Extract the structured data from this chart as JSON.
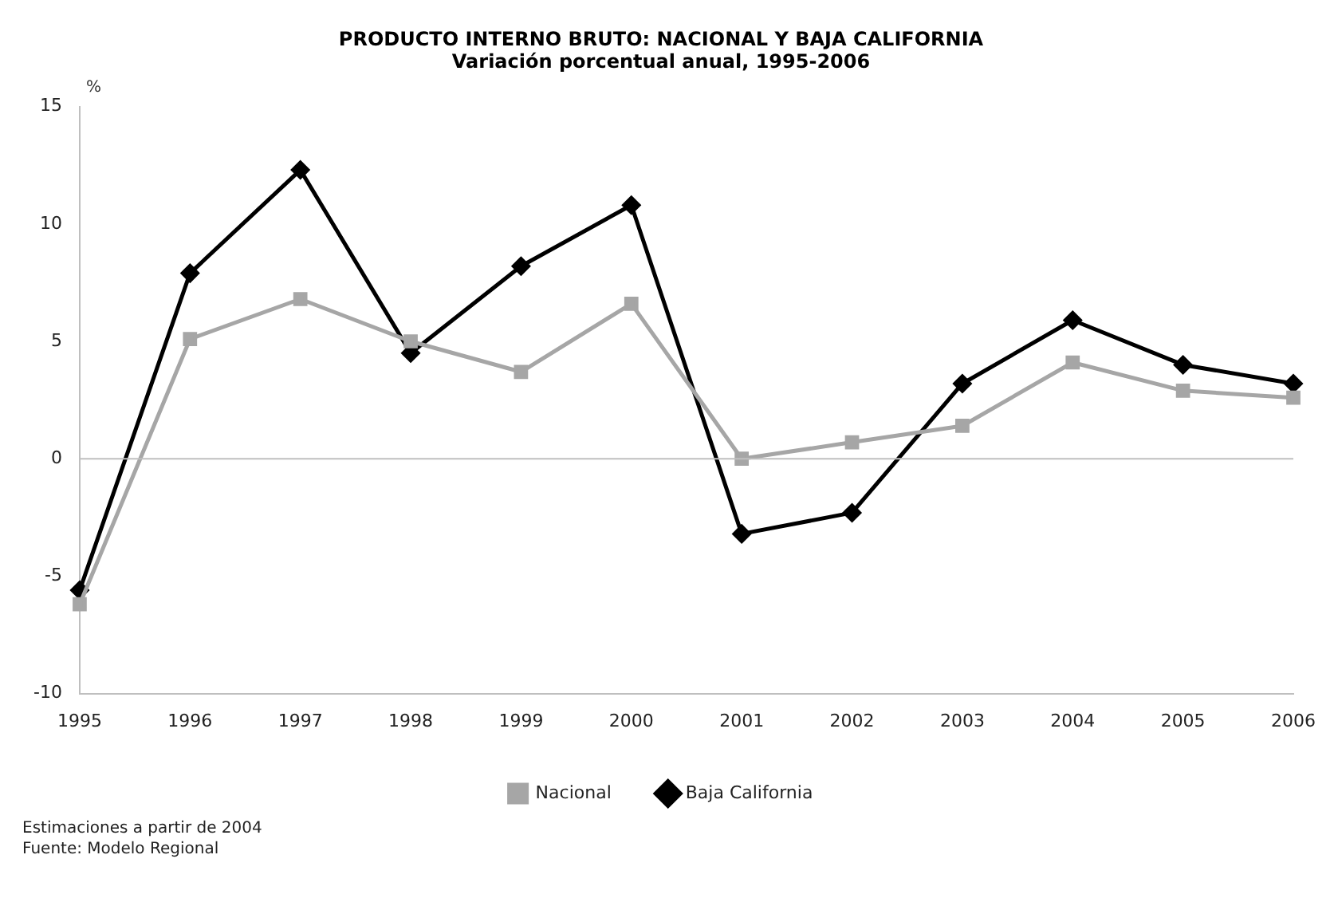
{
  "chart_data": {
    "type": "line",
    "title": "PRODUCTO INTERNO BRUTO: NACIONAL Y BAJA CALIFORNIA",
    "subtitle": "Variación porcentual anual, 1995-2006",
    "ylabel": "%",
    "categories": [
      "1995",
      "1996",
      "1997",
      "1998",
      "1999",
      "2000",
      "2001",
      "2002",
      "2003",
      "2004",
      "2005",
      "2006"
    ],
    "series": [
      {
        "name": "Nacional",
        "color": "#a6a6a6",
        "marker": "square",
        "values": [
          -6.2,
          5.1,
          6.8,
          5.0,
          3.7,
          6.6,
          0.0,
          0.7,
          1.4,
          4.1,
          2.9,
          2.6
        ]
      },
      {
        "name": "Baja California",
        "color": "#000000",
        "marker": "diamond",
        "values": [
          -5.6,
          7.9,
          12.3,
          4.5,
          8.2,
          10.8,
          -3.2,
          -2.3,
          3.2,
          5.9,
          4.0,
          3.2
        ]
      }
    ],
    "ref_lines": [
      {
        "axis": "y",
        "value": 0,
        "color": "#bfbfbf"
      }
    ],
    "ylim": [
      -10,
      15
    ],
    "yticks": [
      -10,
      -5,
      0,
      5,
      10,
      15
    ],
    "grid": false,
    "legend": "bottom",
    "line_style": "solid",
    "annotations": [
      "Estimaciones a partir de 2004",
      "Fuente: Modelo Regional"
    ]
  }
}
